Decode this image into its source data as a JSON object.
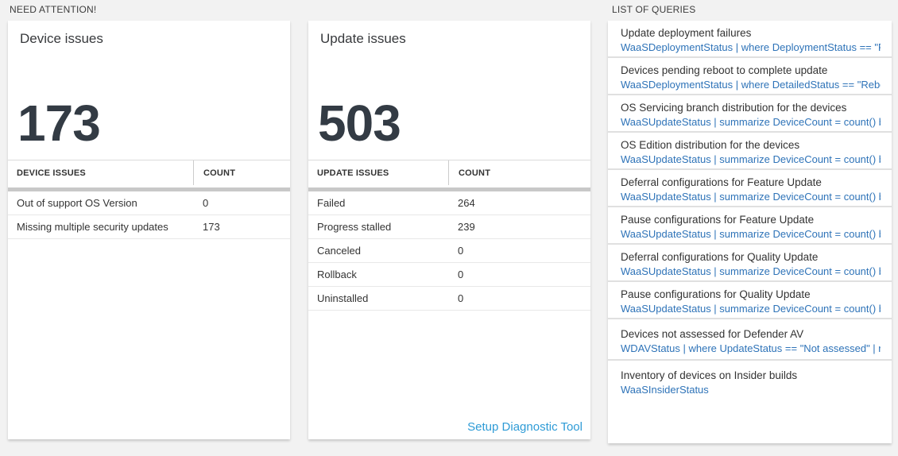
{
  "sections": {
    "need_attention": "NEED ATTENTION!",
    "list_of_queries": "LIST OF QUERIES"
  },
  "device_card": {
    "title": "Device issues",
    "big_number": "173",
    "table": {
      "headers": [
        "DEVICE ISSUES",
        "COUNT"
      ],
      "rows": [
        {
          "issue": "Out of support OS Version",
          "count": "0"
        },
        {
          "issue": "Missing multiple security updates",
          "count": "173"
        }
      ]
    }
  },
  "update_card": {
    "title": "Update issues",
    "big_number": "503",
    "table": {
      "headers": [
        "UPDATE ISSUES",
        "COUNT"
      ],
      "rows": [
        {
          "issue": "Failed",
          "count": "264"
        },
        {
          "issue": "Progress stalled",
          "count": "239"
        },
        {
          "issue": "Canceled",
          "count": "0"
        },
        {
          "issue": "Rollback",
          "count": "0"
        },
        {
          "issue": "Uninstalled",
          "count": "0"
        }
      ]
    },
    "footer_link": "Setup Diagnostic Tool"
  },
  "queries_card": {
    "items": [
      {
        "title": "Update deployment failures",
        "query": "WaaSDeploymentStatus | where DeploymentStatus == \"Failed\" |..."
      },
      {
        "title": "Devices pending reboot to complete update",
        "query": "WaaSDeploymentStatus | where DetailedStatus == \"Reboot pend..."
      },
      {
        "title": "OS Servicing branch distribution for the devices",
        "query": "WaaSUpdateStatus | summarize DeviceCount = count() by OSSer..."
      },
      {
        "title": "OS Edition distribution for the devices",
        "query": "WaaSUpdateStatus | summarize DeviceCount = count() by OSEdit..."
      },
      {
        "title": "Deferral configurations for Feature Update",
        "query": "WaaSUpdateStatus | summarize DeviceCount = count() by Featur..."
      },
      {
        "title": "Pause configurations for Feature Update",
        "query": "WaaSUpdateStatus | summarize DeviceCount = count() by Featur..."
      },
      {
        "title": "Deferral configurations for Quality Update",
        "query": "WaaSUpdateStatus | summarize DeviceCount = count() by Qualit..."
      },
      {
        "title": "Pause configurations for Quality Update",
        "query": "WaaSUpdateStatus | summarize DeviceCount = count() by Qualit..."
      },
      {
        "title": "Devices not assessed for Defender AV",
        "query": "WDAVStatus | where UpdateStatus == \"Not assessed\" | render ta..."
      },
      {
        "title": "Inventory of devices on Insider builds",
        "query": "WaaSInsiderStatus"
      }
    ]
  },
  "colors": {
    "page_background": "#f2f2f2",
    "card_background": "#ffffff",
    "big_number_text": "#333b44",
    "query_link_blue": "#2e73b8",
    "setup_link_blue": "#2e9bd6",
    "table_divider_bar": "#c8c8c8"
  }
}
